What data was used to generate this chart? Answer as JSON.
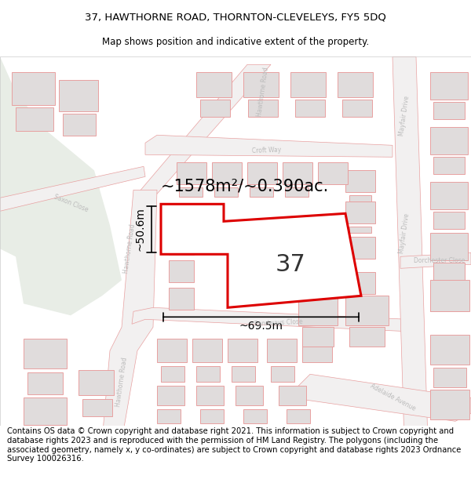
{
  "title_line1": "37, HAWTHORNE ROAD, THORNTON-CLEVELEYS, FY5 5DQ",
  "title_line2": "Map shows position and indicative extent of the property.",
  "footer_text": "Contains OS data © Crown copyright and database right 2021. This information is subject to Crown copyright and database rights 2023 and is reproduced with the permission of HM Land Registry. The polygons (including the associated geometry, namely x, y co-ordinates) are subject to Crown copyright and database rights 2023 Ordnance Survey 100026316.",
  "area_label": "~1578m²/~0.390ac.",
  "width_label": "~69.5m",
  "height_label": "~50.6m",
  "number_label": "37",
  "map_bg": "#f2f0f0",
  "green_color": "#e8ede6",
  "road_color": "#e8a0a0",
  "road_fill": "#f2f0f0",
  "building_stroke": "#e8a0a0",
  "building_fill": "#e0dcdc",
  "property_color": "#dd0000",
  "property_fill": "#ffffff",
  "dim_color": "#000000",
  "text_color": "#000000",
  "road_label_color": "#bbbbbb",
  "title_fontsize": 9.5,
  "subtitle_fontsize": 8.5,
  "area_fontsize": 15,
  "number_fontsize": 22,
  "dim_fontsize": 10,
  "road_label_fontsize": 5.5,
  "footer_fontsize": 7.2
}
